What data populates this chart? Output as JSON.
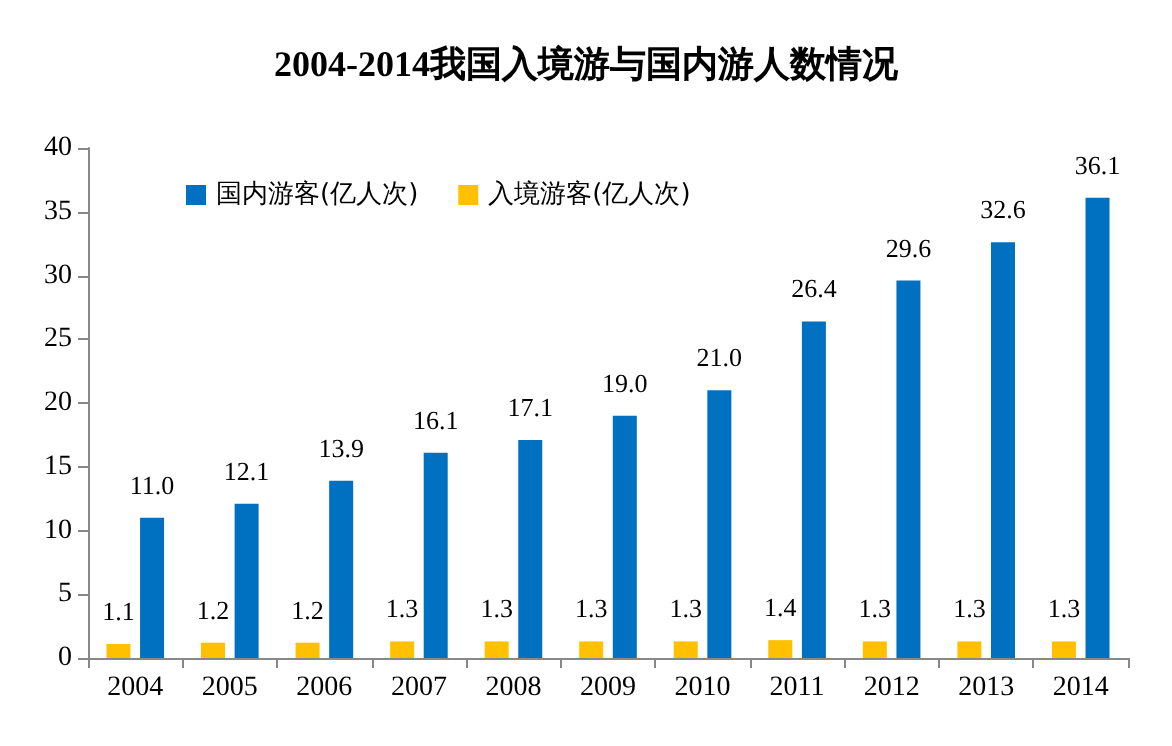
{
  "chart_data": {
    "type": "bar",
    "title": "2004-2014我国入境游与国内游人数情况",
    "categories": [
      "2004",
      "2005",
      "2006",
      "2007",
      "2008",
      "2009",
      "2010",
      "2011",
      "2012",
      "2013",
      "2014"
    ],
    "series": [
      {
        "name": "国内游客(亿人次)",
        "color": "#0070c0",
        "values": [
          11.0,
          12.1,
          13.9,
          16.1,
          17.1,
          19.0,
          21.0,
          26.4,
          29.6,
          32.6,
          36.1
        ],
        "value_labels": [
          "11.0",
          "12.1",
          "13.9",
          "16.1",
          "17.1",
          "19.0",
          "21.0",
          "26.4",
          "29.6",
          "32.6",
          "36.1"
        ]
      },
      {
        "name": "入境游客(亿人次)",
        "color": "#ffc000",
        "values": [
          1.1,
          1.2,
          1.2,
          1.3,
          1.3,
          1.3,
          1.3,
          1.4,
          1.3,
          1.3,
          1.3
        ],
        "value_labels": [
          "1.1",
          "1.2",
          "1.2",
          "1.3",
          "1.3",
          "1.3",
          "1.3",
          "1.4",
          "1.3",
          "1.3",
          "1.3"
        ]
      }
    ],
    "ylim": [
      0,
      40
    ],
    "yticks": [
      0,
      5,
      10,
      15,
      20,
      25,
      30,
      35,
      40
    ],
    "grid": false,
    "legend": "top left"
  }
}
